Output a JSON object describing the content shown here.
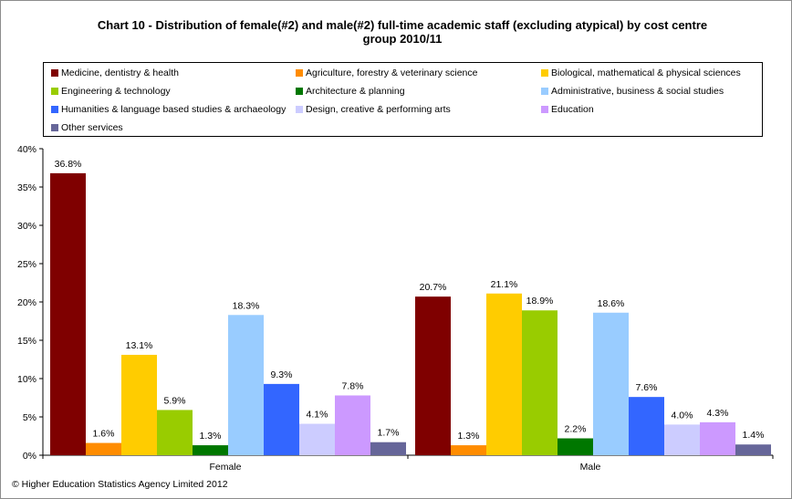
{
  "copyright": "© Higher Education Statistics Agency Limited 2012",
  "chart_data": {
    "type": "bar",
    "title": "Chart 10 - Distribution  of female(#2) and male(#2) full-time academic staff  (excluding atypical) by cost centre group 2010/11",
    "title_lines": [
      "Chart 10 - Distribution  of female(#2) and male(#2) full-time academic staff  (excluding atypical) by cost centre",
      "group 2010/11"
    ],
    "categories": [
      "Female",
      "Male"
    ],
    "ylim": [
      0,
      40
    ],
    "yticks": [
      "0%",
      "5%",
      "10%",
      "15%",
      "20%",
      "25%",
      "30%",
      "35%",
      "40%"
    ],
    "grid": false,
    "legend_position": "top",
    "series": [
      {
        "name": "Medicine, dentistry & health",
        "color": "#7f0000",
        "values": [
          36.8,
          20.7
        ],
        "labels": [
          "36.8%",
          "20.7%"
        ]
      },
      {
        "name": "Agriculture, forestry & veterinary science",
        "color": "#ff8c00",
        "values": [
          1.6,
          1.3
        ],
        "labels": [
          "1.6%",
          "1.3%"
        ]
      },
      {
        "name": "Biological, mathematical & physical sciences",
        "color": "#ffcc00",
        "values": [
          13.1,
          21.1
        ],
        "labels": [
          "13.1%",
          "21.1%"
        ]
      },
      {
        "name": "Engineering & technology",
        "color": "#99cc00",
        "values": [
          5.9,
          18.9
        ],
        "labels": [
          "5.9%",
          "18.9%"
        ]
      },
      {
        "name": "Architecture & planning",
        "color": "#007700",
        "values": [
          1.3,
          2.2
        ],
        "labels": [
          "1.3%",
          "2.2%"
        ]
      },
      {
        "name": "Administrative, business & social studies",
        "color": "#99ccff",
        "values": [
          18.3,
          18.6
        ],
        "labels": [
          "18.3%",
          "18.6%"
        ]
      },
      {
        "name": "Humanities & language based studies & archaeology",
        "color": "#3366ff",
        "values": [
          9.3,
          7.6
        ],
        "labels": [
          "9.3%",
          "7.6%"
        ]
      },
      {
        "name": "Design, creative & performing arts",
        "color": "#ccccff",
        "values": [
          4.1,
          4.0
        ],
        "labels": [
          "4.1%",
          "4.0%"
        ]
      },
      {
        "name": "Education",
        "color": "#cc99ff",
        "values": [
          7.8,
          4.3
        ],
        "labels": [
          "7.8%",
          "4.3%"
        ]
      },
      {
        "name": "Other services",
        "color": "#666699",
        "values": [
          1.7,
          1.4
        ],
        "labels": [
          "1.7%",
          "1.4%"
        ]
      }
    ]
  }
}
